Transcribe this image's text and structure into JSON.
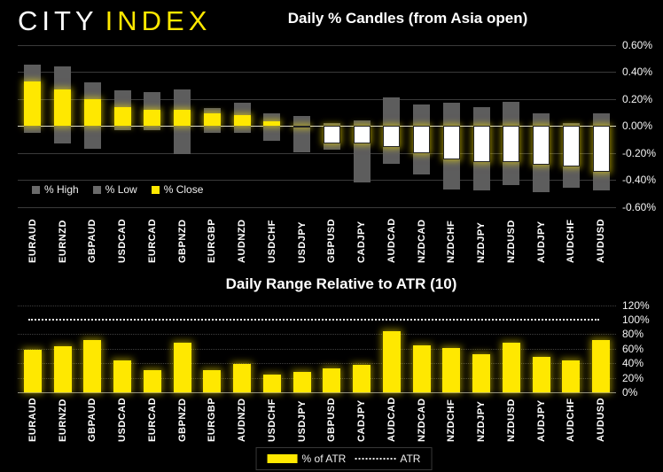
{
  "logo": {
    "city": "CITY",
    "index": "INDEX"
  },
  "colors": {
    "background": "#000000",
    "brand_yellow": "#ffe800",
    "range_gray": "#5d5d5d",
    "negative_close_white": "#ffffff",
    "gridline": "#3a3a3a",
    "zero_line": "#d9d9d9",
    "text": "#ffffff"
  },
  "chart_data": [
    {
      "type": "bar",
      "subtype": "high-low-close-candles",
      "title": "Daily % Candles (from Asia open)",
      "categories": [
        "EURAUD",
        "EURNZD",
        "GBPAUD",
        "USDCAD",
        "EURCAD",
        "GBPNZD",
        "EURGBP",
        "AUDNZD",
        "USDCHF",
        "USDJPY",
        "GBPUSD",
        "CADJPY",
        "AUDCAD",
        "NZDCAD",
        "NZDCHF",
        "NZDJPY",
        "NZDUSD",
        "AUDJPY",
        "AUDCHF",
        "AUDUSD"
      ],
      "series": [
        {
          "name": "% High",
          "color": "#5d5d5d",
          "values": [
            0.45,
            0.44,
            0.32,
            0.26,
            0.25,
            0.27,
            0.13,
            0.17,
            0.09,
            0.07,
            0.02,
            0.04,
            0.21,
            0.16,
            0.17,
            0.14,
            0.18,
            0.09,
            0.02,
            0.09
          ]
        },
        {
          "name": "% Low",
          "color": "#5d5d5d",
          "values": [
            -0.05,
            -0.13,
            -0.17,
            -0.03,
            -0.03,
            -0.21,
            -0.05,
            -0.05,
            -0.11,
            -0.2,
            -0.18,
            -0.42,
            -0.28,
            -0.36,
            -0.47,
            -0.48,
            -0.44,
            -0.49,
            -0.46,
            -0.48
          ]
        },
        {
          "name": "% Close",
          "color": "#ffe800",
          "values": [
            0.33,
            0.27,
            0.2,
            0.14,
            0.12,
            0.12,
            0.09,
            0.08,
            0.03,
            -0.01,
            -0.13,
            -0.13,
            -0.16,
            -0.2,
            -0.25,
            -0.27,
            -0.27,
            -0.29,
            -0.3,
            -0.34
          ]
        }
      ],
      "ylim": [
        -0.6,
        0.6
      ],
      "yticks": {
        "values": [
          0.6,
          0.4,
          0.2,
          0,
          -0.2,
          -0.4,
          -0.6
        ],
        "labels": [
          "0.60%",
          "0.40%",
          "0.20%",
          "0.00%",
          "-0.20%",
          "-0.40%",
          "-0.60%"
        ]
      },
      "grid": true,
      "legend_position": "bottom-left"
    },
    {
      "type": "bar",
      "title": "Daily Range Relative to ATR (10)",
      "categories": [
        "EURAUD",
        "EURNZD",
        "GBPAUD",
        "USDCAD",
        "EURCAD",
        "GBPNZD",
        "EURGBP",
        "AUDNZD",
        "USDCHF",
        "USDJPY",
        "GBPUSD",
        "CADJPY",
        "AUDCAD",
        "NZDCAD",
        "NZDCHF",
        "NZDJPY",
        "NZDUSD",
        "AUDJPY",
        "AUDCHF",
        "AUDUSD"
      ],
      "series": [
        {
          "name": "% of ATR",
          "color": "#ffe800",
          "values": [
            58,
            63,
            72,
            44,
            30,
            68,
            31,
            39,
            25,
            28,
            33,
            38,
            84,
            65,
            61,
            52,
            68,
            49,
            44,
            72
          ]
        }
      ],
      "reference_line": {
        "label": "ATR",
        "value": 100,
        "style": "dotted"
      },
      "ylim": [
        0,
        120
      ],
      "yticks": {
        "values": [
          120,
          100,
          80,
          60,
          40,
          20,
          0
        ],
        "labels": [
          "120%",
          "100%",
          "80%",
          "60%",
          "40%",
          "20%",
          "0%"
        ]
      },
      "grid": true,
      "legend_position": "bottom-center"
    }
  ]
}
